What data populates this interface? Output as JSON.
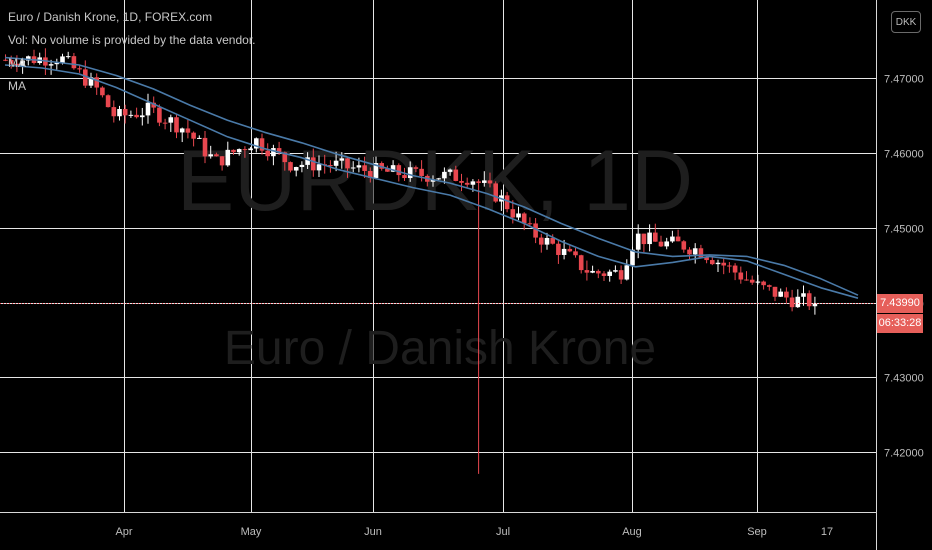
{
  "legend": {
    "symbol": "Euro / Danish Krone, 1D, FOREX.com",
    "volume": "Vol: No volume is provided by the data vendor.",
    "ma1": "MA",
    "ma2": "MA"
  },
  "watermark": {
    "ticker": "EURDKK, 1D",
    "name": "Euro / Danish Krone"
  },
  "currency_badge": "DKK",
  "last_price_label": "7.43990",
  "countdown_label": "06:33:28",
  "colors": {
    "background": "#000000",
    "grid": "#e6e6e6",
    "up": "#ffffff",
    "down": "#e8474f",
    "ma": "#4a7aa8",
    "price_line": "#e8474f",
    "axis_text": "#bdbdbd"
  },
  "chart_data": {
    "type": "candlestick",
    "title": "Euro / Danish Krone, 1D, FOREX.com",
    "y_axis": {
      "min": 7.412,
      "max": 7.4805,
      "ticks": [
        "7.42000",
        "7.43000",
        "7.44000",
        "7.45000",
        "7.46000",
        "7.47000"
      ]
    },
    "x_axis": {
      "ticks": [
        "Apr",
        "May",
        "Jun",
        "Jul",
        "Aug",
        "Sep",
        "17"
      ]
    },
    "last_price": 7.4399,
    "grid": true,
    "series": [
      {
        "name": "MA",
        "values": [
          7.4718,
          7.4714,
          7.4706,
          7.4688,
          7.4666,
          7.4644,
          7.4622,
          7.4606,
          7.4594,
          7.4578,
          7.4566,
          7.4554,
          7.4544,
          7.4526,
          7.4506,
          7.4482,
          7.4462,
          7.4448,
          7.4454,
          7.4462,
          7.4456,
          7.4438,
          7.442,
          7.4406
        ]
      },
      {
        "name": "MA",
        "values": [
          7.4728,
          7.4724,
          7.4718,
          7.4704,
          7.4686,
          7.4664,
          7.4644,
          7.4628,
          7.4614,
          7.4598,
          7.4584,
          7.457,
          7.456,
          7.4546,
          7.4528,
          7.4506,
          7.4486,
          7.4468,
          7.4462,
          7.4464,
          7.4462,
          7.445,
          7.4432,
          7.441
        ]
      }
    ],
    "candles": []
  }
}
